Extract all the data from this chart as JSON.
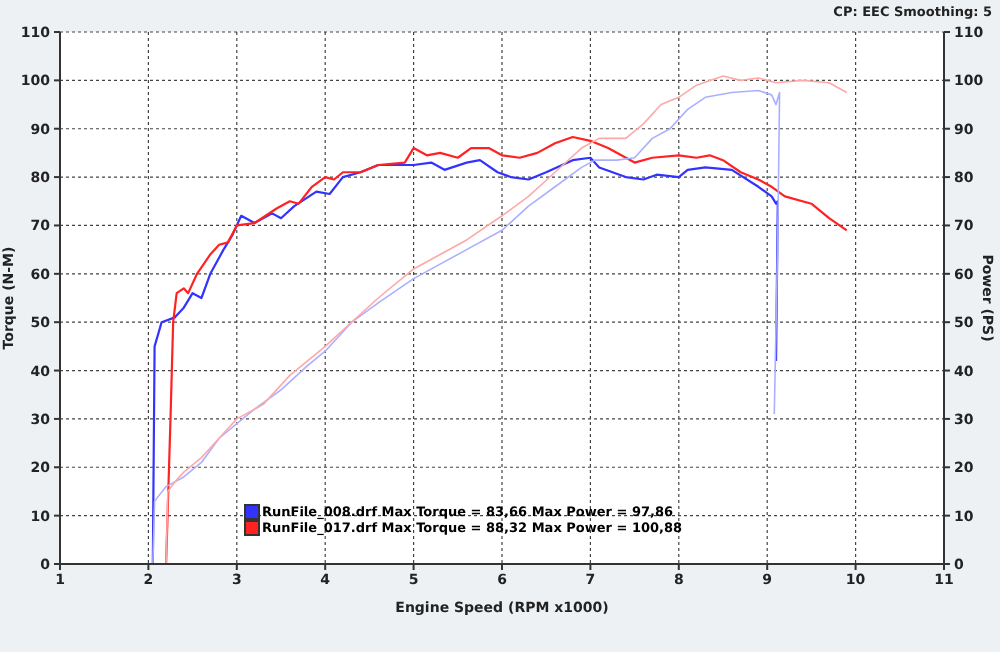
{
  "chart_data": {
    "type": "line",
    "xlabel": "Engine Speed (RPM x1000)",
    "ylabel": "Torque (N-M)",
    "y2label": "Power (PS)",
    "annotations": [
      "CP: EEC  Smoothing: 5"
    ],
    "xlim": [
      1,
      11
    ],
    "xticks": [
      1,
      2,
      3,
      4,
      5,
      6,
      7,
      8,
      9,
      10,
      11
    ],
    "ylim": [
      0,
      110
    ],
    "yticks": [
      0,
      10,
      20,
      30,
      40,
      50,
      60,
      70,
      80,
      90,
      100,
      110
    ],
    "y2lim": [
      0,
      110
    ],
    "y2ticks": [
      0,
      10,
      20,
      30,
      40,
      50,
      60,
      70,
      80,
      90,
      100,
      110
    ],
    "grid": true,
    "legend": "bottom left",
    "marker": "none",
    "line_style": "solid",
    "series": [
      {
        "name": "RunFile_008.drf Max Torque = 83,66 Max Power = 97,86",
        "color": "#3333ff",
        "x": [
          2.05,
          2.07,
          2.15,
          2.3,
          2.4,
          2.5,
          2.6,
          2.7,
          2.85,
          2.95,
          3.05,
          3.2,
          3.4,
          3.5,
          3.65,
          3.9,
          4.05,
          4.2,
          4.4,
          4.6,
          5.0,
          5.2,
          5.35,
          5.6,
          5.75,
          5.95,
          6.1,
          6.3,
          6.5,
          6.8,
          7.0,
          7.1,
          7.4,
          7.6,
          7.75,
          8.0,
          8.1,
          8.3,
          8.6,
          8.9,
          9.05,
          9.1,
          9.12,
          9.1
        ],
        "values": [
          0,
          45,
          50,
          51,
          53,
          56,
          55,
          60,
          65,
          68,
          72,
          70.5,
          72.5,
          71.5,
          74,
          77,
          76.5,
          80,
          81,
          82.5,
          82.5,
          83,
          81.5,
          83,
          83.5,
          81,
          80,
          79.5,
          81,
          83.5,
          84,
          82,
          80,
          79.5,
          80.5,
          80,
          81.5,
          82,
          81.5,
          78,
          76,
          74.5,
          75,
          42
        ]
      },
      {
        "name": "RunFile_017.drf Max Torque = 88,32 Max Power = 100,88",
        "color": "#ff2222",
        "x": [
          2.2,
          2.25,
          2.28,
          2.32,
          2.4,
          2.45,
          2.55,
          2.7,
          2.8,
          2.9,
          3.0,
          3.2,
          3.45,
          3.6,
          3.7,
          3.85,
          4.0,
          4.1,
          4.2,
          4.4,
          4.6,
          4.9,
          5.0,
          5.15,
          5.3,
          5.5,
          5.65,
          5.85,
          6.0,
          6.2,
          6.4,
          6.6,
          6.8,
          7.0,
          7.2,
          7.5,
          7.7,
          8.0,
          8.2,
          8.35,
          8.5,
          8.7,
          8.9,
          9.05,
          9.2,
          9.5,
          9.7,
          9.9
        ],
        "values": [
          0,
          30,
          50,
          56,
          57,
          56,
          60,
          64,
          66,
          66.5,
          70,
          70.5,
          73.5,
          75,
          74.5,
          78,
          80,
          79.5,
          81,
          81,
          82.5,
          83,
          86,
          84.5,
          85,
          84,
          86,
          86,
          84.5,
          84,
          85,
          87,
          88.3,
          87.5,
          86,
          83,
          84,
          84.5,
          84,
          84.5,
          83.5,
          81,
          79.5,
          78,
          76,
          74.5,
          71.5,
          69
        ]
      },
      {
        "axis": "y2",
        "color": "#aab0ff",
        "x": [
          2.05,
          2.07,
          2.2,
          2.4,
          2.6,
          2.8,
          3.2,
          3.5,
          3.8,
          4.0,
          4.3,
          4.6,
          5.0,
          5.3,
          5.6,
          6.0,
          6.3,
          6.6,
          6.9,
          7.05,
          7.3,
          7.5,
          7.7,
          7.9,
          8.1,
          8.3,
          8.6,
          8.9,
          9.05,
          9.1,
          9.14,
          9.12,
          9.08
        ],
        "values": [
          0,
          13,
          16,
          18,
          21,
          26,
          32,
          36,
          41,
          44,
          50,
          54,
          59,
          62,
          65,
          69,
          74,
          78,
          82,
          83.5,
          83.5,
          84,
          88,
          90,
          94,
          96.5,
          97.5,
          97.9,
          97,
          95,
          97.5,
          68,
          31
        ]
      },
      {
        "axis": "y2",
        "color": "#ffa8a8",
        "x": [
          2.2,
          2.22,
          2.3,
          2.4,
          2.6,
          2.8,
          3.0,
          3.3,
          3.6,
          4.0,
          4.3,
          4.6,
          5.0,
          5.3,
          5.6,
          6.0,
          6.3,
          6.6,
          6.9,
          7.1,
          7.4,
          7.6,
          7.8,
          8.0,
          8.2,
          8.5,
          8.7,
          8.9,
          9.1,
          9.4,
          9.7,
          9.9
        ],
        "values": [
          0,
          15,
          17,
          19,
          22,
          26,
          30,
          33,
          39,
          45,
          50,
          55,
          61,
          64,
          67,
          72,
          76,
          81,
          86,
          88,
          88,
          91,
          95,
          96.5,
          99,
          100.9,
          100,
          100.5,
          99.5,
          100,
          99.5,
          97.5
        ]
      }
    ]
  }
}
